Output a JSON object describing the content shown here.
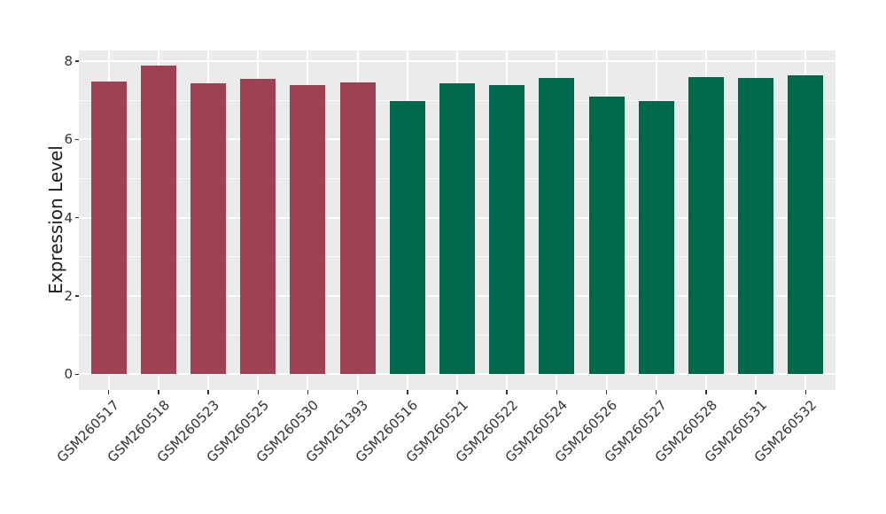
{
  "chart_data": {
    "type": "bar",
    "title": "",
    "xlabel": "",
    "ylabel": "Expression Level",
    "ylim": [
      0,
      8.27
    ],
    "yticks": [
      0,
      2,
      4,
      6,
      8
    ],
    "yticks_minor": [
      1,
      3,
      5,
      7
    ],
    "grid": true,
    "legend_position": "none",
    "categories": [
      "GSM260517",
      "GSM260518",
      "GSM260523",
      "GSM260525",
      "GSM260530",
      "GSM261393",
      "GSM260516",
      "GSM260521",
      "GSM260522",
      "GSM260524",
      "GSM260526",
      "GSM260527",
      "GSM260528",
      "GSM260531",
      "GSM260532"
    ],
    "values": [
      7.47,
      7.88,
      7.43,
      7.54,
      7.38,
      7.45,
      6.99,
      7.44,
      7.4,
      7.58,
      7.09,
      6.99,
      7.59,
      7.56,
      7.64
    ],
    "groups": [
      "A",
      "A",
      "A",
      "A",
      "A",
      "A",
      "B",
      "B",
      "B",
      "B",
      "B",
      "B",
      "B",
      "B",
      "B"
    ],
    "group_colors": {
      "A": "#9E4152",
      "B": "#00694C"
    }
  },
  "style": {
    "panel_bg": "#EBEBEB",
    "grid_major": "#FFFFFF",
    "grid_minor": "rgba(255,255,255,0.65)",
    "tick_color": "#333333",
    "label_color": "#333333",
    "figure_bg": "#FFFFFF"
  }
}
